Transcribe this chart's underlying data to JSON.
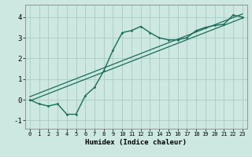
{
  "title": "",
  "xlabel": "Humidex (Indice chaleur)",
  "ylabel": "",
  "bg_color": "#cce8e0",
  "grid_color": "#aaccC4",
  "line_color": "#1a6b5a",
  "x_data": [
    0,
    1,
    2,
    3,
    4,
    5,
    6,
    7,
    8,
    9,
    10,
    11,
    12,
    13,
    14,
    15,
    16,
    17,
    18,
    19,
    20,
    21,
    22,
    23
  ],
  "y_data": [
    0.0,
    -0.2,
    -0.3,
    -0.2,
    -0.7,
    -0.7,
    0.2,
    0.6,
    1.4,
    2.4,
    3.25,
    3.35,
    3.55,
    3.25,
    3.0,
    2.9,
    2.9,
    3.0,
    3.35,
    3.5,
    3.6,
    3.65,
    4.1,
    4.0
  ],
  "line1_x": [
    0,
    23
  ],
  "line1_y": [
    -0.05,
    3.95
  ],
  "line2_x": [
    0,
    23
  ],
  "line2_y": [
    0.15,
    4.15
  ],
  "ylim": [
    -1.4,
    4.6
  ],
  "xlim": [
    -0.5,
    23.5
  ],
  "yticks": [
    -1,
    0,
    1,
    2,
    3,
    4
  ],
  "xticks": [
    0,
    1,
    2,
    3,
    4,
    5,
    6,
    7,
    8,
    9,
    10,
    11,
    12,
    13,
    14,
    15,
    16,
    17,
    18,
    19,
    20,
    21,
    22,
    23
  ]
}
